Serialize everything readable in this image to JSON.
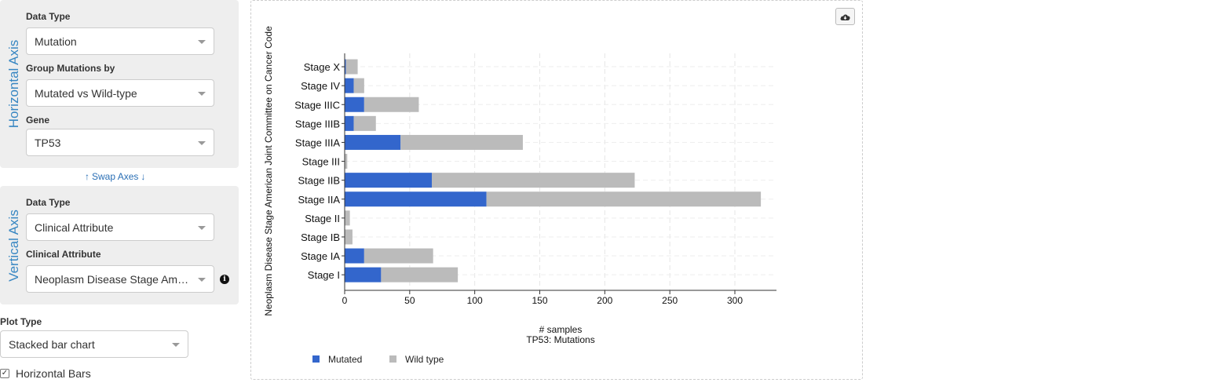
{
  "horizontal_axis": {
    "title": "Horizontal Axis",
    "data_type_label": "Data Type",
    "data_type_value": "Mutation",
    "group_label": "Group Mutations by",
    "group_value": "Mutated vs Wild-type",
    "gene_label": "Gene",
    "gene_value": "TP53"
  },
  "swap_label": "Swap Axes",
  "vertical_axis": {
    "title": "Vertical Axis",
    "data_type_label": "Data Type",
    "data_type_value": "Clinical Attribute",
    "attribute_label": "Clinical Attribute",
    "attribute_value": "Neoplasm Disease Stage American Joint Committee on Cancer Code"
  },
  "plot_type": {
    "label": "Plot Type",
    "value": "Stacked bar chart"
  },
  "horizontal_bars": {
    "label": "Horizontal Bars",
    "checked": true
  },
  "chart_data": {
    "type": "bar",
    "orientation": "horizontal",
    "stacked": true,
    "categories": [
      "Stage X",
      "Stage IV",
      "Stage IIIC",
      "Stage IIIB",
      "Stage IIIA",
      "Stage III",
      "Stage IIB",
      "Stage IIA",
      "Stage II",
      "Stage IB",
      "Stage IA",
      "Stage I"
    ],
    "series": [
      {
        "name": "Mutated",
        "color": "#3366cc",
        "values": [
          1,
          7,
          15,
          7,
          43,
          0,
          67,
          109,
          0,
          0,
          15,
          28
        ]
      },
      {
        "name": "Wild type",
        "color": "#bbbbbb",
        "values": [
          9,
          8,
          42,
          17,
          94,
          2,
          156,
          211,
          4,
          6,
          53,
          59
        ]
      }
    ],
    "xlabel": "# samples",
    "xlabel2": "TP53: Mutations",
    "ylabel": "Neoplasm Disease Stage American Joint Committee on Cancer Code",
    "xlim": [
      0,
      332
    ],
    "xticks": [
      0,
      50,
      100,
      150,
      200,
      250,
      300
    ],
    "grid": true,
    "legend_position": "bottom-left"
  }
}
